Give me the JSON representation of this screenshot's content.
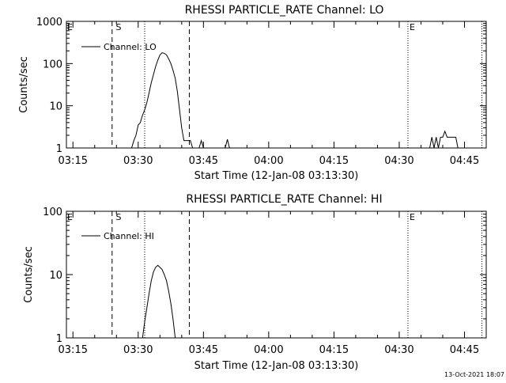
{
  "footer": "13-Oct-2021 18:07",
  "chart_data": [
    {
      "type": "line",
      "title": "RHESSI PARTICLE_RATE Channel: LO",
      "xlabel": "Start Time (12-Jan-08 03:13:30)",
      "ylabel": "Counts/sec",
      "yscale": "log",
      "ylim": [
        1,
        1000
      ],
      "xlim": [
        "03:13:30",
        "04:50:00"
      ],
      "x_ticks": [
        "03:15",
        "03:30",
        "03:45",
        "04:00",
        "04:15",
        "04:30",
        "04:45"
      ],
      "y_ticks": [
        "1",
        "10",
        "100",
        "1000"
      ],
      "legend": {
        "position": "top-left",
        "entries": [
          "Channel: LO"
        ]
      },
      "annotations": [
        {
          "text": "E",
          "x": "03:13:30"
        },
        {
          "text": "S",
          "x": "03:24:30"
        },
        {
          "text": "E",
          "x": "04:32:00"
        }
      ],
      "markers": [
        {
          "style": "dashed",
          "x": "03:24:00"
        },
        {
          "style": "dotted",
          "x": "03:31:30"
        },
        {
          "style": "dashed",
          "x": "03:41:45"
        },
        {
          "style": "dotted",
          "x": "04:32:00"
        },
        {
          "style": "dotted",
          "x": "04:49:00"
        }
      ],
      "series": [
        {
          "segments": [
            {
              "x": [
                "03:28:30",
                "03:29:00",
                "03:29:30",
                "03:30:00",
                "03:30:30",
                "03:31:00",
                "03:31:30",
                "03:32:00",
                "03:32:30",
                "03:33:00",
                "03:33:30",
                "03:34:00",
                "03:34:30",
                "03:35:00",
                "03:35:30",
                "03:36:00",
                "03:36:30",
                "03:37:00",
                "03:37:30",
                "03:38:00",
                "03:38:30",
                "03:39:00",
                "03:39:30",
                "03:40:00",
                "03:40:30",
                "03:41:00",
                "03:41:30",
                "03:42:00",
                "03:42:30"
              ],
              "y": [
                1,
                1.5,
                2,
                3.5,
                4,
                6,
                8,
                12,
                20,
                35,
                55,
                85,
                120,
                160,
                180,
                175,
                160,
                130,
                100,
                70,
                45,
                22,
                8,
                3,
                1.5,
                1.5,
                1.5,
                1.5,
                1
              ]
            },
            {
              "x": [
                "03:44:00",
                "03:44:30",
                "03:45:00"
              ],
              "y": [
                1,
                1.5,
                1
              ]
            },
            {
              "x": [
                "03:50:00",
                "03:50:30",
                "03:51:00"
              ],
              "y": [
                1,
                1.6,
                1
              ]
            },
            {
              "x": [
                "04:37:00",
                "04:37:30",
                "04:38:00",
                "04:38:30",
                "04:39:00",
                "04:39:30",
                "04:40:00",
                "04:40:30",
                "04:41:00",
                "04:41:30",
                "04:42:00",
                "04:42:30",
                "04:43:00",
                "04:43:30"
              ],
              "y": [
                1,
                1.8,
                1,
                1.8,
                1,
                1.8,
                1.8,
                2.5,
                1.8,
                1.8,
                1.8,
                1.8,
                1.8,
                1
              ]
            }
          ]
        }
      ]
    },
    {
      "type": "line",
      "title": "RHESSI PARTICLE_RATE Channel: HI",
      "xlabel": "Start Time (12-Jan-08 03:13:30)",
      "ylabel": "Counts/sec",
      "yscale": "log",
      "ylim": [
        1,
        100
      ],
      "xlim": [
        "03:13:30",
        "04:50:00"
      ],
      "x_ticks": [
        "03:15",
        "03:30",
        "03:45",
        "04:00",
        "04:15",
        "04:30",
        "04:45"
      ],
      "y_ticks": [
        "1",
        "10",
        "100"
      ],
      "legend": {
        "position": "top-left",
        "entries": [
          "Channel: HI"
        ]
      },
      "annotations": [
        {
          "text": "E",
          "x": "03:13:30"
        },
        {
          "text": "S",
          "x": "03:24:30"
        },
        {
          "text": "E",
          "x": "04:32:00"
        }
      ],
      "markers": [
        {
          "style": "dashed",
          "x": "03:24:00"
        },
        {
          "style": "dotted",
          "x": "03:31:30"
        },
        {
          "style": "dashed",
          "x": "03:41:45"
        },
        {
          "style": "dotted",
          "x": "04:32:00"
        },
        {
          "style": "dotted",
          "x": "04:49:00"
        }
      ],
      "series": [
        {
          "segments": [
            {
              "x": [
                "03:31:00",
                "03:31:30",
                "03:32:00",
                "03:32:30",
                "03:33:00",
                "03:33:30",
                "03:34:00",
                "03:34:30",
                "03:35:00",
                "03:35:30",
                "03:36:00",
                "03:36:30",
                "03:37:00",
                "03:37:30",
                "03:38:00",
                "03:38:30"
              ],
              "y": [
                1,
                1.8,
                3,
                5,
                8,
                11,
                13,
                14,
                13,
                12,
                10,
                8,
                5.5,
                3.5,
                2,
                1
              ]
            }
          ]
        }
      ]
    }
  ]
}
